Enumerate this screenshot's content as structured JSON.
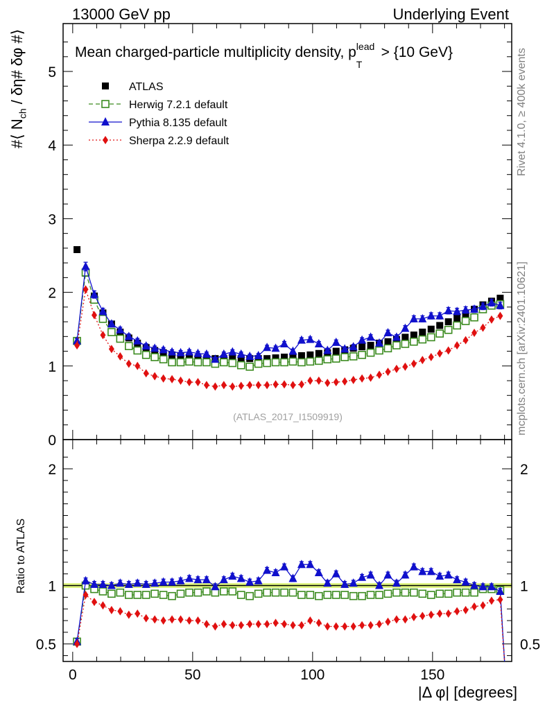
{
  "header": {
    "left": "13000 GeV pp",
    "right": "Underlying Event"
  },
  "side_text": {
    "rivet": "Rivet 4.1.0, ≥ 400k events",
    "mcplots": "mcplots.cern.ch [arXiv:2401.10621]"
  },
  "chart_data": {
    "type": "line",
    "title": "Mean charged-particle multiplicity density, p",
    "title_sup": "lead",
    "title_sub": "T",
    "title_tail": "> {10 GeV}",
    "watermark": "(ATLAS_2017_I1509919)",
    "ylabel": "#⟨ N",
    "ylabel_sub": "ch",
    "ylabel_tail": "/ δη# δφ #⟩",
    "ratio_ylabel": "Ratio to ATLAS",
    "xlabel": "|Δ φ| [degrees]",
    "xlim": [
      -4,
      183
    ],
    "ylim": [
      0,
      5.65
    ],
    "ratio_ylim": [
      0.35,
      2.25
    ],
    "y_ticks": [
      "0",
      "1",
      "2",
      "3",
      "4",
      "5"
    ],
    "ratio_ticks": [
      "0.5",
      "1",
      "2"
    ],
    "x_ticks": [
      "0",
      "50",
      "100",
      "150"
    ],
    "legend": [
      "ATLAS",
      "Herwig 7.2.1 default",
      "Pythia 8.135 default",
      "Sherpa 2.2.9 default"
    ],
    "colors": {
      "ATLAS": "#000000",
      "Herwig": "#3a8a1e",
      "Pythia": "#1010cc",
      "Sherpa": "#e01010",
      "band": "#d6f25a"
    },
    "x": [
      1.8,
      5.4,
      9.0,
      12.6,
      16.2,
      19.8,
      23.4,
      27.0,
      30.6,
      34.2,
      37.8,
      41.4,
      45.0,
      48.6,
      52.2,
      55.8,
      59.4,
      63.0,
      66.6,
      70.2,
      73.8,
      77.4,
      81.0,
      84.6,
      88.2,
      91.8,
      95.4,
      99.0,
      102.6,
      106.2,
      109.8,
      113.4,
      117.0,
      120.6,
      124.2,
      127.8,
      131.4,
      135.0,
      138.6,
      142.2,
      145.8,
      149.4,
      153.0,
      156.6,
      160.2,
      163.8,
      167.4,
      171.0,
      174.6,
      178.2
    ],
    "series": [
      {
        "name": "ATLAS",
        "values": [
          2.58,
          2.26,
          1.95,
          1.72,
          1.57,
          1.46,
          1.38,
          1.31,
          1.25,
          1.21,
          1.18,
          1.15,
          1.13,
          1.12,
          1.11,
          1.1,
          1.1,
          1.1,
          1.1,
          1.1,
          1.1,
          1.1,
          1.1,
          1.11,
          1.12,
          1.13,
          1.14,
          1.15,
          1.17,
          1.18,
          1.2,
          1.22,
          1.24,
          1.26,
          1.28,
          1.31,
          1.33,
          1.36,
          1.39,
          1.42,
          1.46,
          1.5,
          1.55,
          1.6,
          1.65,
          1.71,
          1.77,
          1.83,
          1.88,
          1.92
        ]
      },
      {
        "name": "Herwig 7.2.1 default",
        "values": [
          1.34,
          2.27,
          1.9,
          1.64,
          1.46,
          1.37,
          1.27,
          1.21,
          1.15,
          1.12,
          1.09,
          1.05,
          1.05,
          1.06,
          1.05,
          1.05,
          1.03,
          1.05,
          1.04,
          1.01,
          0.99,
          1.03,
          1.04,
          1.05,
          1.05,
          1.06,
          1.05,
          1.06,
          1.07,
          1.09,
          1.1,
          1.12,
          1.13,
          1.15,
          1.18,
          1.21,
          1.24,
          1.28,
          1.3,
          1.33,
          1.36,
          1.39,
          1.44,
          1.49,
          1.55,
          1.61,
          1.66,
          1.77,
          1.82,
          1.84
        ]
      },
      {
        "name": "Pythia 8.135 default",
        "values": [
          1.34,
          2.35,
          1.97,
          1.74,
          1.57,
          1.49,
          1.4,
          1.34,
          1.27,
          1.24,
          1.22,
          1.19,
          1.18,
          1.19,
          1.17,
          1.16,
          1.09,
          1.16,
          1.19,
          1.16,
          1.13,
          1.14,
          1.25,
          1.24,
          1.3,
          1.2,
          1.35,
          1.36,
          1.3,
          1.21,
          1.32,
          1.23,
          1.26,
          1.35,
          1.39,
          1.31,
          1.45,
          1.39,
          1.51,
          1.64,
          1.64,
          1.68,
          1.68,
          1.75,
          1.74,
          1.76,
          1.77,
          1.81,
          1.86,
          1.82
        ]
      },
      {
        "name": "Sherpa 2.2.9 default",
        "values": [
          1.28,
          2.04,
          1.69,
          1.42,
          1.23,
          1.13,
          1.03,
          1.0,
          0.9,
          0.86,
          0.83,
          0.82,
          0.8,
          0.78,
          0.78,
          0.74,
          0.72,
          0.74,
          0.72,
          0.73,
          0.74,
          0.74,
          0.74,
          0.75,
          0.75,
          0.74,
          0.75,
          0.8,
          0.8,
          0.77,
          0.78,
          0.79,
          0.81,
          0.83,
          0.84,
          0.88,
          0.92,
          0.96,
          0.99,
          1.03,
          1.08,
          1.12,
          1.17,
          1.21,
          1.28,
          1.35,
          1.45,
          1.52,
          1.63,
          1.68
        ]
      }
    ],
    "ratio_series": [
      {
        "name": "Herwig 7.2.1 default",
        "values": [
          0.52,
          1.0,
          0.97,
          0.95,
          0.93,
          0.94,
          0.92,
          0.92,
          0.92,
          0.93,
          0.92,
          0.91,
          0.93,
          0.94,
          0.94,
          0.95,
          0.94,
          0.95,
          0.95,
          0.92,
          0.91,
          0.93,
          0.94,
          0.94,
          0.94,
          0.94,
          0.92,
          0.92,
          0.91,
          0.92,
          0.92,
          0.92,
          0.91,
          0.91,
          0.92,
          0.92,
          0.93,
          0.94,
          0.94,
          0.94,
          0.93,
          0.92,
          0.93,
          0.93,
          0.94,
          0.94,
          0.94,
          0.97,
          0.97,
          0.96
        ]
      },
      {
        "name": "Pythia 8.135 default",
        "values": [
          0.52,
          1.04,
          1.01,
          1.01,
          1.0,
          1.02,
          1.01,
          1.02,
          1.01,
          1.02,
          1.03,
          1.03,
          1.04,
          1.06,
          1.05,
          1.05,
          0.99,
          1.05,
          1.08,
          1.06,
          1.03,
          1.04,
          1.13,
          1.11,
          1.16,
          1.06,
          1.18,
          1.18,
          1.11,
          1.02,
          1.1,
          1.01,
          1.02,
          1.07,
          1.09,
          1.0,
          1.09,
          1.02,
          1.09,
          1.16,
          1.12,
          1.12,
          1.08,
          1.09,
          1.05,
          1.03,
          1.0,
          0.99,
          0.99,
          0.95
        ]
      },
      {
        "name": "Sherpa 2.2.9 default",
        "values": [
          0.5,
          0.92,
          0.86,
          0.83,
          0.79,
          0.78,
          0.75,
          0.76,
          0.72,
          0.71,
          0.7,
          0.71,
          0.71,
          0.7,
          0.7,
          0.67,
          0.65,
          0.67,
          0.66,
          0.66,
          0.67,
          0.67,
          0.67,
          0.68,
          0.67,
          0.66,
          0.66,
          0.7,
          0.68,
          0.65,
          0.65,
          0.65,
          0.65,
          0.66,
          0.66,
          0.67,
          0.69,
          0.71,
          0.71,
          0.73,
          0.74,
          0.75,
          0.76,
          0.76,
          0.78,
          0.79,
          0.82,
          0.83,
          0.87,
          0.88
        ]
      }
    ]
  }
}
